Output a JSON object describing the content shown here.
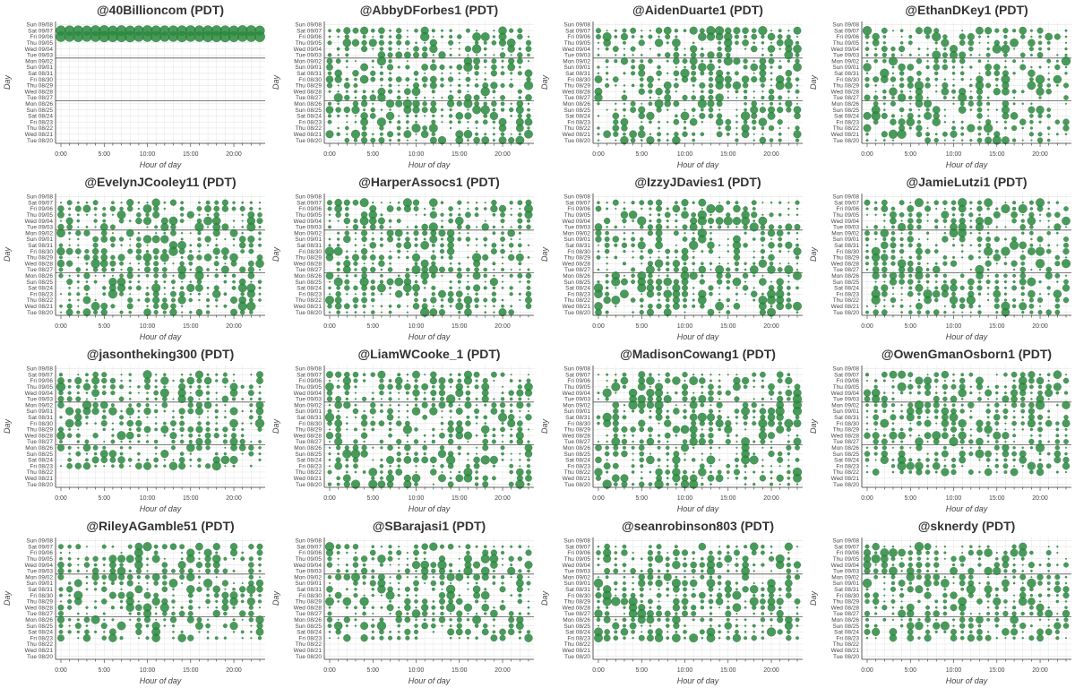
{
  "chart_data": [
    {
      "type": "scatter",
      "title": "@40Billioncom (PDT)",
      "xlabel": "Hour of day",
      "ylabel": "Day",
      "seed": 11,
      "density": 0.0,
      "active_rows": [
        1,
        2,
        3,
        4,
        5
      ],
      "full_rows": true,
      "xlim": [
        0,
        23
      ],
      "xticks": [
        "0:00",
        "5:00",
        "10:00",
        "15:00",
        "20:00"
      ],
      "yticks": [
        "Sun 09/08",
        "Sat 09/07",
        "Fri 09/06",
        "Thu 09/05",
        "Wed 09/04",
        "Tue 09/03",
        "Mon 09/02",
        "Sun 09/01",
        "Sat 08/31",
        "Fri 08/30",
        "Thu 08/29",
        "Wed 08/28",
        "Tue 08/27",
        "Mon 08/26",
        "Sun 08/25",
        "Sat 08/24",
        "Fri 08/23",
        "Thu 08/22",
        "Wed 08/21",
        "Tue 08/20"
      ]
    },
    {
      "type": "scatter",
      "title": "@AbbyDForbes1 (PDT)",
      "xlabel": "Hour of day",
      "ylabel": "Day",
      "seed": 23,
      "density": 0.82,
      "active_rows": [
        1,
        19
      ],
      "full_rows": false,
      "xlim": [
        0,
        23
      ],
      "xticks": [
        "0:00",
        "5:00",
        "10:00",
        "15:00",
        "20:00"
      ],
      "yticks": [
        "Sun 09/08",
        "Sat 09/07",
        "Fri 09/06",
        "Thu 09/05",
        "Wed 09/04",
        "Tue 09/03",
        "Mon 09/02",
        "Sun 09/01",
        "Sat 08/31",
        "Fri 08/30",
        "Thu 08/29",
        "Wed 08/28",
        "Tue 08/27",
        "Mon 08/26",
        "Sun 08/25",
        "Sat 08/24",
        "Fri 08/23",
        "Thu 08/22",
        "Wed 08/21",
        "Tue 08/20"
      ]
    },
    {
      "type": "scatter",
      "title": "@AidenDuarte1 (PDT)",
      "xlabel": "Hour of day",
      "ylabel": "Day",
      "seed": 37,
      "density": 0.8,
      "active_rows": [
        1,
        19
      ],
      "full_rows": false,
      "xlim": [
        0,
        23
      ],
      "xticks": [
        "0:00",
        "5:00",
        "10:00",
        "15:00",
        "20:00"
      ],
      "yticks": [
        "Sun 09/08",
        "Sat 09/07",
        "Fri 09/06",
        "Thu 09/05",
        "Wed 09/04",
        "Tue 09/03",
        "Mon 09/02",
        "Sun 09/01",
        "Sat 08/31",
        "Fri 08/30",
        "Thu 08/29",
        "Wed 08/28",
        "Tue 08/27",
        "Mon 08/26",
        "Sun 08/25",
        "Sat 08/24",
        "Fri 08/23",
        "Thu 08/22",
        "Wed 08/21",
        "Tue 08/20"
      ]
    },
    {
      "type": "scatter",
      "title": "@EthanDKey1 (PDT)",
      "xlabel": "Hour of day",
      "ylabel": "Day",
      "seed": 41,
      "density": 0.78,
      "active_rows": [
        1,
        19
      ],
      "full_rows": false,
      "xlim": [
        0,
        23
      ],
      "xticks": [
        "0:00",
        "5:00",
        "10:00",
        "15:00",
        "20:00"
      ],
      "yticks": [
        "Sun 09/08",
        "Sat 09/07",
        "Fri 09/06",
        "Thu 09/05",
        "Wed 09/04",
        "Tue 09/03",
        "Mon 09/02",
        "Sun 09/01",
        "Sat 08/31",
        "Fri 08/30",
        "Thu 08/29",
        "Wed 08/28",
        "Tue 08/27",
        "Mon 08/26",
        "Sun 08/25",
        "Sat 08/24",
        "Fri 08/23",
        "Thu 08/22",
        "Wed 08/21",
        "Tue 08/20"
      ]
    },
    {
      "type": "scatter",
      "title": "@EvelynJCooley11 (PDT)",
      "xlabel": "Hour of day",
      "ylabel": "Day",
      "seed": 53,
      "density": 0.8,
      "active_rows": [
        1,
        19
      ],
      "full_rows": false,
      "xlim": [
        0,
        23
      ],
      "xticks": [
        "0:00",
        "5:00",
        "10:00",
        "15:00",
        "20:00"
      ],
      "yticks": [
        "Sun 09/08",
        "Sat 09/07",
        "Fri 09/06",
        "Thu 09/05",
        "Wed 09/04",
        "Tue 09/03",
        "Mon 09/02",
        "Sun 09/01",
        "Sat 08/31",
        "Fri 08/30",
        "Thu 08/29",
        "Wed 08/28",
        "Tue 08/27",
        "Mon 08/26",
        "Sun 08/25",
        "Sat 08/24",
        "Fri 08/23",
        "Thu 08/22",
        "Wed 08/21",
        "Tue 08/20"
      ]
    },
    {
      "type": "scatter",
      "title": "@HarperAssocs1 (PDT)",
      "xlabel": "Hour of day",
      "ylabel": "Day",
      "seed": 59,
      "density": 0.8,
      "active_rows": [
        1,
        19
      ],
      "full_rows": false,
      "xlim": [
        0,
        23
      ],
      "xticks": [
        "0:00",
        "5:00",
        "10:00",
        "15:00",
        "20:00"
      ],
      "yticks": [
        "Sun 09/08",
        "Sat 09/07",
        "Fri 09/06",
        "Thu 09/05",
        "Wed 09/04",
        "Tue 09/03",
        "Mon 09/02",
        "Sun 09/01",
        "Sat 08/31",
        "Fri 08/30",
        "Thu 08/29",
        "Wed 08/28",
        "Tue 08/27",
        "Mon 08/26",
        "Sun 08/25",
        "Sat 08/24",
        "Fri 08/23",
        "Thu 08/22",
        "Wed 08/21",
        "Tue 08/20"
      ]
    },
    {
      "type": "scatter",
      "title": "@IzzyJDavies1 (PDT)",
      "xlabel": "Hour of day",
      "ylabel": "Day",
      "seed": 67,
      "density": 0.78,
      "active_rows": [
        1,
        19
      ],
      "full_rows": false,
      "xlim": [
        0,
        23
      ],
      "xticks": [
        "0:00",
        "5:00",
        "10:00",
        "15:00",
        "20:00"
      ],
      "yticks": [
        "Sun 09/08",
        "Sat 09/07",
        "Fri 09/06",
        "Thu 09/05",
        "Wed 09/04",
        "Tue 09/03",
        "Mon 09/02",
        "Sun 09/01",
        "Sat 08/31",
        "Fri 08/30",
        "Thu 08/29",
        "Wed 08/28",
        "Tue 08/27",
        "Mon 08/26",
        "Sun 08/25",
        "Sat 08/24",
        "Fri 08/23",
        "Thu 08/22",
        "Wed 08/21",
        "Tue 08/20"
      ]
    },
    {
      "type": "scatter",
      "title": "@JamieLutzi1 (PDT)",
      "xlabel": "Hour of day",
      "ylabel": "Day",
      "seed": 71,
      "density": 0.8,
      "active_rows": [
        1,
        19
      ],
      "full_rows": false,
      "xlim": [
        0,
        23
      ],
      "xticks": [
        "0:00",
        "5:00",
        "10:00",
        "15:00",
        "20:00"
      ],
      "yticks": [
        "Sun 09/08",
        "Sat 09/07",
        "Fri 09/06",
        "Thu 09/05",
        "Wed 09/04",
        "Tue 09/03",
        "Mon 09/02",
        "Sun 09/01",
        "Sat 08/31",
        "Fri 08/30",
        "Thu 08/29",
        "Wed 08/28",
        "Tue 08/27",
        "Mon 08/26",
        "Sun 08/25",
        "Sat 08/24",
        "Fri 08/23",
        "Thu 08/22",
        "Wed 08/21",
        "Tue 08/20"
      ]
    },
    {
      "type": "scatter",
      "title": "@jasontheking300 (PDT)",
      "xlabel": "Hour of day",
      "ylabel": "Day",
      "seed": 79,
      "density": 0.8,
      "active_rows": [
        1,
        16
      ],
      "full_rows": false,
      "xlim": [
        0,
        23
      ],
      "xticks": [
        "0:00",
        "5:00",
        "10:00",
        "15:00",
        "20:00"
      ],
      "yticks": [
        "Sun 09/08",
        "Sat 09/07",
        "Fri 09/06",
        "Thu 09/05",
        "Wed 09/04",
        "Tue 09/03",
        "Mon 09/02",
        "Sun 09/01",
        "Sat 08/31",
        "Fri 08/30",
        "Thu 08/29",
        "Wed 08/28",
        "Tue 08/27",
        "Mon 08/26",
        "Sun 08/25",
        "Sat 08/24",
        "Fri 08/23",
        "Thu 08/22",
        "Wed 08/21",
        "Tue 08/20"
      ]
    },
    {
      "type": "scatter",
      "title": "@LiamWCooke_1 (PDT)",
      "xlabel": "Hour of day",
      "ylabel": "Day",
      "seed": 83,
      "density": 0.8,
      "active_rows": [
        1,
        19
      ],
      "full_rows": false,
      "xlim": [
        0,
        23
      ],
      "xticks": [
        "0:00",
        "5:00",
        "10:00",
        "15:00",
        "20:00"
      ],
      "yticks": [
        "Sun 09/08",
        "Sat 09/07",
        "Fri 09/06",
        "Thu 09/05",
        "Wed 09/04",
        "Tue 09/03",
        "Mon 09/02",
        "Sun 09/01",
        "Sat 08/31",
        "Fri 08/30",
        "Thu 08/29",
        "Wed 08/28",
        "Tue 08/27",
        "Mon 08/26",
        "Sun 08/25",
        "Sat 08/24",
        "Fri 08/23",
        "Thu 08/22",
        "Wed 08/21",
        "Tue 08/20"
      ]
    },
    {
      "type": "scatter",
      "title": "@MadisonCowang1 (PDT)",
      "xlabel": "Hour of day",
      "ylabel": "Day",
      "seed": 97,
      "density": 0.78,
      "active_rows": [
        1,
        19
      ],
      "full_rows": false,
      "xlim": [
        0,
        23
      ],
      "xticks": [
        "0:00",
        "5:00",
        "10:00",
        "15:00",
        "20:00"
      ],
      "yticks": [
        "Sun 09/08",
        "Sat 09/07",
        "Fri 09/06",
        "Thu 09/05",
        "Wed 09/04",
        "Tue 09/03",
        "Mon 09/02",
        "Sun 09/01",
        "Sat 08/31",
        "Fri 08/30",
        "Thu 08/29",
        "Wed 08/28",
        "Tue 08/27",
        "Mon 08/26",
        "Sun 08/25",
        "Sat 08/24",
        "Fri 08/23",
        "Thu 08/22",
        "Wed 08/21",
        "Tue 08/20"
      ]
    },
    {
      "type": "scatter",
      "title": "@OwenGmanOsborn1 (PDT)",
      "xlabel": "Hour of day",
      "ylabel": "Day",
      "seed": 101,
      "density": 0.8,
      "active_rows": [
        1,
        17
      ],
      "full_rows": false,
      "xlim": [
        0,
        23
      ],
      "xticks": [
        "0:00",
        "5:00",
        "10:00",
        "15:00",
        "20:00"
      ],
      "yticks": [
        "Sun 09/08",
        "Sat 09/07",
        "Fri 09/06",
        "Thu 09/05",
        "Wed 09/04",
        "Tue 09/03",
        "Mon 09/02",
        "Sun 09/01",
        "Sat 08/31",
        "Fri 08/30",
        "Thu 08/29",
        "Wed 08/28",
        "Tue 08/27",
        "Mon 08/26",
        "Sun 08/25",
        "Sat 08/24",
        "Fri 08/23",
        "Thu 08/22",
        "Wed 08/21",
        "Tue 08/20"
      ]
    },
    {
      "type": "scatter",
      "title": "@RileyAGamble51 (PDT)",
      "xlabel": "Hour of day",
      "ylabel": "Day",
      "seed": 103,
      "density": 0.8,
      "active_rows": [
        1,
        16
      ],
      "full_rows": false,
      "xlim": [
        0,
        23
      ],
      "xticks": [
        "0:00",
        "5:00",
        "10:00",
        "15:00",
        "20:00"
      ],
      "yticks": [
        "Sun 09/08",
        "Sat 09/07",
        "Fri 09/06",
        "Thu 09/05",
        "Wed 09/04",
        "Tue 09/03",
        "Mon 09/02",
        "Sun 09/01",
        "Sat 08/31",
        "Fri 08/30",
        "Thu 08/29",
        "Wed 08/28",
        "Tue 08/27",
        "Mon 08/26",
        "Sun 08/25",
        "Sat 08/24",
        "Fri 08/23",
        "Thu 08/22",
        "Wed 08/21",
        "Tue 08/20"
      ]
    },
    {
      "type": "scatter",
      "title": "@SBarajasi1 (PDT)",
      "xlabel": "Hour of day",
      "ylabel": "Day",
      "seed": 107,
      "density": 0.82,
      "active_rows": [
        1,
        16
      ],
      "full_rows": false,
      "xlim": [
        0,
        23
      ],
      "xticks": [
        "0:00",
        "5:00",
        "10:00",
        "15:00",
        "20:00"
      ],
      "yticks": [
        "Sun 09/08",
        "Sat 09/07",
        "Fri 09/06",
        "Thu 09/05",
        "Wed 09/04",
        "Tue 09/03",
        "Mon 09/02",
        "Sun 09/01",
        "Sat 08/31",
        "Fri 08/30",
        "Thu 08/29",
        "Wed 08/28",
        "Tue 08/27",
        "Mon 08/26",
        "Sun 08/25",
        "Sat 08/24",
        "Fri 08/23",
        "Thu 08/22",
        "Wed 08/21",
        "Tue 08/20"
      ]
    },
    {
      "type": "scatter",
      "title": "@seanrobinson803 (PDT)",
      "xlabel": "Hour of day",
      "ylabel": "Day",
      "seed": 109,
      "density": 0.82,
      "active_rows": [
        1,
        16
      ],
      "full_rows": false,
      "xlim": [
        0,
        23
      ],
      "xticks": [
        "0:00",
        "5:00",
        "10:00",
        "15:00",
        "20:00"
      ],
      "yticks": [
        "Sun 09/08",
        "Sat 09/07",
        "Fri 09/06",
        "Thu 09/05",
        "Wed 09/04",
        "Tue 09/03",
        "Mon 09/02",
        "Sun 09/01",
        "Sat 08/31",
        "Fri 08/30",
        "Thu 08/29",
        "Wed 08/28",
        "Tue 08/27",
        "Mon 08/26",
        "Sun 08/25",
        "Sat 08/24",
        "Fri 08/23",
        "Thu 08/22",
        "Wed 08/21",
        "Tue 08/20"
      ]
    },
    {
      "type": "scatter",
      "title": "@sknerdy (PDT)",
      "xlabel": "Hour of day",
      "ylabel": "Day",
      "seed": 113,
      "density": 0.8,
      "active_rows": [
        1,
        16
      ],
      "full_rows": false,
      "xlim": [
        0,
        23
      ],
      "xticks": [
        "0:00",
        "5:00",
        "10:00",
        "15:00",
        "20:00"
      ],
      "yticks": [
        "Sun 09/08",
        "Sat 09/07",
        "Fri 09/06",
        "Thu 09/05",
        "Wed 09/04",
        "Tue 09/03",
        "Mon 09/02",
        "Sun 09/01",
        "Sat 08/31",
        "Fri 08/30",
        "Thu 08/29",
        "Wed 08/28",
        "Tue 08/27",
        "Mon 08/26",
        "Sun 08/25",
        "Sat 08/24",
        "Fri 08/23",
        "Thu 08/22",
        "Wed 08/21",
        "Tue 08/20"
      ]
    }
  ],
  "colors": {
    "marker": "#2a8a3e",
    "marker_stroke": "#1f6b30",
    "grid": "#e6e6e6",
    "axis": "#333333",
    "week_line": "#555555"
  },
  "grid": true
}
